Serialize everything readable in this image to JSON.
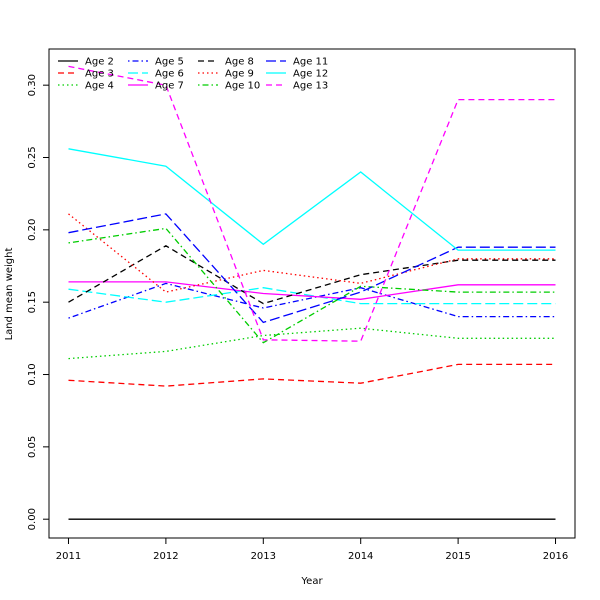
{
  "chart_data": {
    "type": "line",
    "xlabel": "Year",
    "ylabel": "Land mean weight",
    "x": [
      2011,
      2012,
      2013,
      2014,
      2015,
      2016
    ],
    "xticks": [
      "2011",
      "2012",
      "2013",
      "2014",
      "2015",
      "2016"
    ],
    "yticks": [
      "0.00",
      "0.05",
      "0.10",
      "0.15",
      "0.20",
      "0.25",
      "0.30"
    ],
    "xlim": [
      2010.8,
      2016.2
    ],
    "ylim": [
      -0.013,
      0.325
    ],
    "grid": false,
    "legend_position": "top-left",
    "series": [
      {
        "name": "Age 2",
        "color": "#000000",
        "dash": "solid",
        "values": [
          0.0,
          0.0,
          0.0,
          0.0,
          0.0,
          0.0
        ]
      },
      {
        "name": "Age 3",
        "color": "#ff0000",
        "dash": "dashed",
        "values": [
          0.096,
          0.092,
          0.097,
          0.094,
          0.107,
          0.107
        ]
      },
      {
        "name": "Age 4",
        "color": "#00cd00",
        "dash": "dotted",
        "values": [
          0.111,
          0.116,
          0.127,
          0.132,
          0.125,
          0.125
        ]
      },
      {
        "name": "Age 5",
        "color": "#0000ff",
        "dash": "dotdash",
        "values": [
          0.139,
          0.163,
          0.146,
          0.16,
          0.14,
          0.14
        ]
      },
      {
        "name": "Age 6",
        "color": "#00ffff",
        "dash": "longdash",
        "values": [
          0.159,
          0.15,
          0.16,
          0.149,
          0.149,
          0.149
        ]
      },
      {
        "name": "Age 7",
        "color": "#ff00ff",
        "dash": "solid",
        "values": [
          0.164,
          0.164,
          0.156,
          0.152,
          0.162,
          0.162
        ]
      },
      {
        "name": "Age 8",
        "color": "#000000",
        "dash": "dashed",
        "values": [
          0.15,
          0.189,
          0.149,
          0.169,
          0.179,
          0.179
        ]
      },
      {
        "name": "Age 9",
        "color": "#ff0000",
        "dash": "dotted",
        "values": [
          0.211,
          0.157,
          0.172,
          0.163,
          0.18,
          0.18
        ]
      },
      {
        "name": "Age 10",
        "color": "#00cd00",
        "dash": "dotdash",
        "values": [
          0.191,
          0.201,
          0.122,
          0.161,
          0.157,
          0.157
        ]
      },
      {
        "name": "Age 11",
        "color": "#0000ff",
        "dash": "longdash",
        "values": [
          0.198,
          0.211,
          0.136,
          0.157,
          0.188,
          0.188
        ]
      },
      {
        "name": "Age 12",
        "color": "#00ffff",
        "dash": "solid",
        "values": [
          0.256,
          0.244,
          0.19,
          0.24,
          0.186,
          0.186
        ]
      },
      {
        "name": "Age 13",
        "color": "#ff00ff",
        "dash": "dashed",
        "values": [
          0.313,
          0.3,
          0.124,
          0.123,
          0.29,
          0.29
        ]
      }
    ]
  }
}
